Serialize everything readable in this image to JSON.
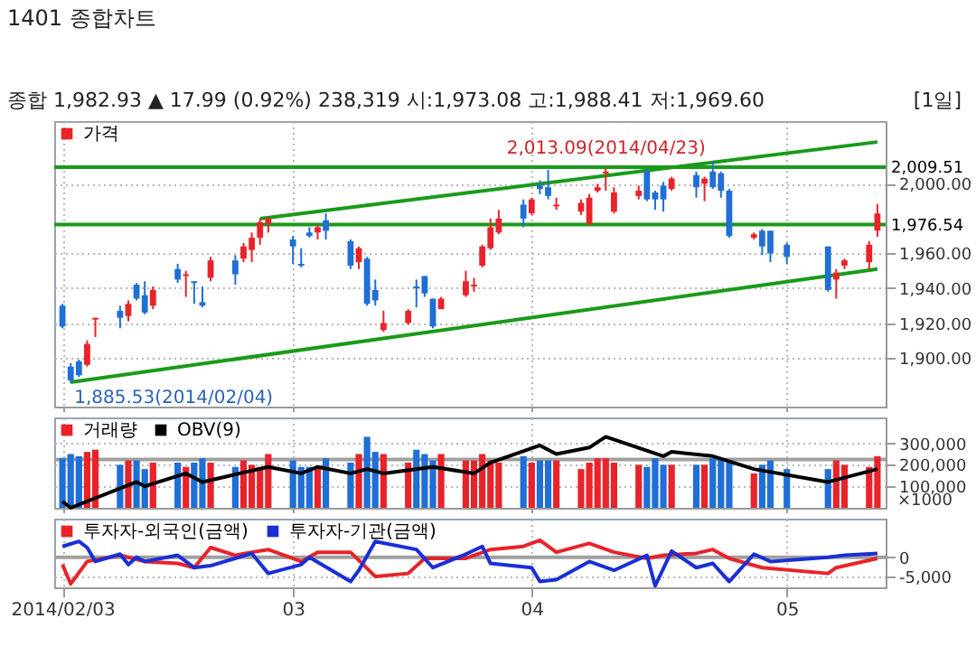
{
  "chart_data": [
    {
      "type": "candlestick",
      "title": "1401 종합차트",
      "subtitle": "종합 1,982.93 ▲ 17.99 (0.92%) 238,319 시:1,973.08 고:1,988.41 저:1,969.60",
      "annotations": [
        "[1일]",
        {
          "text": "2,013.09(2014/04/23)",
          "x": "2014-04-23",
          "y": 2013.09
        },
        {
          "text": "1,885.53(2014/02/04)",
          "x": "2014-02-04",
          "y": 1885.53
        }
      ],
      "series": [
        {
          "name": "가격",
          "x": [
            "2014-02-03",
            "2014-02-04",
            "2014-02-05",
            "2014-02-06",
            "2014-02-07",
            "2014-02-10",
            "2014-02-11",
            "2014-02-12",
            "2014-02-13",
            "2014-02-14",
            "2014-02-17",
            "2014-02-18",
            "2014-02-19",
            "2014-02-20",
            "2014-02-21",
            "2014-02-24",
            "2014-02-25",
            "2014-02-26",
            "2014-02-27",
            "2014-02-28",
            "2014-03-03",
            "2014-03-04",
            "2014-03-05",
            "2014-03-06",
            "2014-03-07",
            "2014-03-10",
            "2014-03-11",
            "2014-03-12",
            "2014-03-13",
            "2014-03-14",
            "2014-03-17",
            "2014-03-18",
            "2014-03-19",
            "2014-03-20",
            "2014-03-21",
            "2014-03-24",
            "2014-03-25",
            "2014-03-26",
            "2014-03-27",
            "2014-03-28",
            "2014-03-31",
            "2014-04-01",
            "2014-04-02",
            "2014-04-03",
            "2014-04-04",
            "2014-04-07",
            "2014-04-08",
            "2014-04-09",
            "2014-04-10",
            "2014-04-11",
            "2014-04-14",
            "2014-04-15",
            "2014-04-16",
            "2014-04-17",
            "2014-04-18",
            "2014-04-21",
            "2014-04-22",
            "2014-04-23",
            "2014-04-24",
            "2014-04-25",
            "2014-04-28",
            "2014-04-29",
            "2014-04-30",
            "2014-05-02",
            "2014-05-07",
            "2014-05-08",
            "2014-05-09",
            "2014-05-12",
            "2014-05-13"
          ],
          "ohlc": [
            [
              1930,
              1931,
              1917,
              1918
            ],
            [
              1895,
              1897,
              1885.53,
              1887
            ],
            [
              1898,
              1899,
              1889,
              1890
            ],
            [
              1896,
              1910,
              1895,
              1908
            ],
            [
              1922,
              1923,
              1912,
              1923
            ],
            [
              1927,
              1930,
              1917,
              1923
            ],
            [
              1924,
              1933,
              1921,
              1931
            ],
            [
              1942,
              1943,
              1933,
              1934
            ],
            [
              1936,
              1944,
              1925,
              1926
            ],
            [
              1930,
              1941,
              1928,
              1939
            ],
            [
              1951,
              1954,
              1943,
              1945
            ],
            [
              1947,
              1950,
              1935,
              1948
            ],
            [
              1944,
              1944,
              1931,
              1943
            ],
            [
              1932,
              1941,
              1929,
              1930
            ],
            [
              1946,
              1958,
              1944,
              1956
            ],
            [
              1956,
              1959,
              1942,
              1948
            ],
            [
              1957,
              1966,
              1955,
              1964
            ],
            [
              1962,
              1972,
              1955,
              1969
            ],
            [
              1969,
              1980,
              1965,
              1978
            ],
            [
              1977,
              1981,
              1972,
              1980
            ],
            [
              1968,
              1970,
              1954,
              1964
            ],
            [
              1954,
              1963,
              1952,
              1953
            ],
            [
              1972,
              1975,
              1969,
              1970
            ],
            [
              1972,
              1976,
              1968,
              1975
            ],
            [
              1979,
              1983,
              1968,
              1973
            ],
            [
              1967,
              1968,
              1951,
              1953
            ],
            [
              1955,
              1964,
              1951,
              1963
            ],
            [
              1957,
              1958,
              1930,
              1931
            ],
            [
              1939,
              1945,
              1930,
              1933
            ],
            [
              1916,
              1927,
              1915,
              1920
            ],
            [
              1920,
              1928,
              1919,
              1927
            ],
            [
              1941,
              1945,
              1929,
              1940
            ],
            [
              1947,
              1947,
              1935,
              1937
            ],
            [
              1934,
              1934,
              1917,
              1918
            ],
            [
              1928,
              1935,
              1928,
              1934
            ],
            [
              1936,
              1950,
              1935,
              1944
            ],
            [
              1941,
              1946,
              1938,
              1942
            ],
            [
              1953,
              1965,
              1952,
              1964
            ],
            [
              1963,
              1980,
              1962,
              1975
            ],
            [
              1972,
              1985,
              1971,
              1980
            ],
            [
              1988,
              1991,
              1975,
              1980
            ],
            [
              1983,
              1992,
              1982,
              1991
            ],
            [
              1999,
              2002,
              1994,
              1997
            ],
            [
              1998,
              2008,
              1991,
              1993
            ],
            [
              1987,
              1992,
              1985,
              1988
            ],
            [
              1984,
              1991,
              1982,
              1989
            ],
            [
              1977,
              1994,
              1976,
              1992
            ],
            [
              1996,
              2000,
              1995,
              1998
            ],
            [
              2006,
              2009,
              1996,
              2007
            ],
            [
              1984,
              1998,
              1983,
              1995
            ],
            [
              1993,
              1999,
              1991,
              1996
            ],
            [
              2007,
              2009,
              1990,
              1991
            ],
            [
              1995,
              1996,
              1985,
              1991
            ],
            [
              1999,
              2001,
              1984,
              1991
            ],
            [
              1997,
              2004,
              1996,
              2003
            ],
            [
              2005,
              2007,
              1992,
              1998
            ],
            [
              2000,
              2004,
              1990,
              2003
            ],
            [
              2007,
              2013.09,
              1997,
              1998
            ],
            [
              2006,
              2007,
              1992,
              1996
            ],
            [
              1996,
              1997,
              1969,
              1970
            ],
            [
              1969,
              1972,
              1968,
              1971
            ],
            [
              1973,
              1974,
              1959,
              1964
            ],
            [
              1973,
              1973,
              1955,
              1960
            ],
            [
              1965,
              1966,
              1954,
              1958
            ],
            [
              1964,
              1964,
              1938,
              1939
            ],
            [
              1945,
              1951,
              1934,
              1949
            ],
            [
              1953,
              1957,
              1951,
              1956
            ],
            [
              1955,
              1967,
              1951,
              1965
            ],
            [
              1973.08,
              1988.41,
              1969.6,
              1982.93
            ]
          ],
          "colors": [
            "#1f6fd6",
            "#1f6fd6",
            "#1f6fd6",
            "#e8232a",
            "#e8232a",
            "#1f6fd6",
            "#e8232a",
            "#1f6fd6",
            "#1f6fd6",
            "#e8232a",
            "#1f6fd6",
            "#e8232a",
            "#1f6fd6",
            "#1f6fd6",
            "#e8232a",
            "#1f6fd6",
            "#e8232a",
            "#e8232a",
            "#e8232a",
            "#e8232a",
            "#1f6fd6",
            "#1f6fd6",
            "#1f6fd6",
            "#e8232a",
            "#1f6fd6",
            "#1f6fd6",
            "#e8232a",
            "#1f6fd6",
            "#1f6fd6",
            "#e8232a",
            "#e8232a",
            "#1f6fd6",
            "#1f6fd6",
            "#1f6fd6",
            "#e8232a",
            "#e8232a",
            "#e8232a",
            "#e8232a",
            "#e8232a",
            "#e8232a",
            "#1f6fd6",
            "#e8232a",
            "#1f6fd6",
            "#1f6fd6",
            "#e8232a",
            "#e8232a",
            "#e8232a",
            "#e8232a",
            "#e8232a",
            "#e8232a",
            "#e8232a",
            "#1f6fd6",
            "#1f6fd6",
            "#1f6fd6",
            "#e8232a",
            "#1f6fd6",
            "#e8232a",
            "#1f6fd6",
            "#1f6fd6",
            "#1f6fd6",
            "#e8232a",
            "#1f6fd6",
            "#1f6fd6",
            "#1f6fd6",
            "#1f6fd6",
            "#e8232a",
            "#e8232a",
            "#e8232a",
            "#e8232a"
          ]
        },
        {
          "type": "line",
          "color": "#1a9a1a",
          "x": [
            "2014-02-27",
            "2014-05-13"
          ],
          "values": [
            1980,
            2024
          ]
        },
        {
          "type": "line",
          "color": "#1a9a1a",
          "x": [
            "2014-02-04",
            "2014-05-13"
          ],
          "values": [
            1886,
            1951
          ]
        }
      ],
      "ref_lines": [
        {
          "axis": "y",
          "value": 2009.51,
          "label": "2,009.51",
          "color": "#1a9a1a"
        },
        {
          "axis": "y",
          "value": 1976.54,
          "label": "1,976.54",
          "color": "#1a9a1a"
        }
      ],
      "ylim": [
        1872,
        2036
      ],
      "yticks": [
        {
          "value": 1900,
          "label": "1,900.00"
        },
        {
          "value": 1920,
          "label": "1,920.00"
        },
        {
          "value": 1940,
          "label": "1,940.00"
        },
        {
          "value": 1960,
          "label": "1,960.00"
        },
        {
          "value": 2000,
          "label": "2,000.00"
        }
      ],
      "xlim": [
        "2014-02-02",
        "2014-05-14"
      ],
      "xticks": [
        "2014-02-03",
        "2014-03-03",
        "2014-04-01",
        "2014-05-02"
      ],
      "tick_labels": "y",
      "grid": true,
      "legend": "top left"
    },
    {
      "type": "bar",
      "ylabel": "×1000",
      "series": [
        {
          "name": "거래량",
          "x": [
            "2014-02-03",
            "2014-02-04",
            "2014-02-05",
            "2014-02-06",
            "2014-02-07",
            "2014-02-10",
            "2014-02-11",
            "2014-02-12",
            "2014-02-13",
            "2014-02-14",
            "2014-02-17",
            "2014-02-18",
            "2014-02-19",
            "2014-02-20",
            "2014-02-21",
            "2014-02-24",
            "2014-02-25",
            "2014-02-26",
            "2014-02-27",
            "2014-02-28",
            "2014-03-03",
            "2014-03-04",
            "2014-03-05",
            "2014-03-06",
            "2014-03-07",
            "2014-03-10",
            "2014-03-11",
            "2014-03-12",
            "2014-03-13",
            "2014-03-14",
            "2014-03-17",
            "2014-03-18",
            "2014-03-19",
            "2014-03-20",
            "2014-03-21",
            "2014-03-24",
            "2014-03-25",
            "2014-03-26",
            "2014-03-27",
            "2014-03-28",
            "2014-03-31",
            "2014-04-01",
            "2014-04-02",
            "2014-04-03",
            "2014-04-04",
            "2014-04-07",
            "2014-04-08",
            "2014-04-09",
            "2014-04-10",
            "2014-04-11",
            "2014-04-14",
            "2014-04-15",
            "2014-04-16",
            "2014-04-17",
            "2014-04-18",
            "2014-04-21",
            "2014-04-22",
            "2014-04-23",
            "2014-04-24",
            "2014-04-25",
            "2014-04-28",
            "2014-04-29",
            "2014-04-30",
            "2014-05-02",
            "2014-05-07",
            "2014-05-08",
            "2014-05-09",
            "2014-05-12",
            "2014-05-13"
          ],
          "values": [
            230000,
            250000,
            240000,
            260000,
            270000,
            200000,
            220000,
            220000,
            180000,
            210000,
            210000,
            190000,
            210000,
            230000,
            210000,
            190000,
            220000,
            200000,
            190000,
            250000,
            220000,
            190000,
            190000,
            190000,
            230000,
            210000,
            250000,
            330000,
            260000,
            250000,
            210000,
            270000,
            250000,
            220000,
            250000,
            220000,
            220000,
            250000,
            220000,
            210000,
            240000,
            210000,
            220000,
            220000,
            220000,
            180000,
            210000,
            230000,
            230000,
            210000,
            200000,
            190000,
            230000,
            200000,
            200000,
            200000,
            200000,
            230000,
            230000,
            220000,
            160000,
            200000,
            220000,
            180000,
            180000,
            220000,
            200000,
            190000,
            240000
          ],
          "colors": [
            "#1f6fd6",
            "#1f6fd6",
            "#1f6fd6",
            "#e8232a",
            "#e8232a",
            "#1f6fd6",
            "#e8232a",
            "#1f6fd6",
            "#1f6fd6",
            "#e8232a",
            "#1f6fd6",
            "#e8232a",
            "#1f6fd6",
            "#1f6fd6",
            "#e8232a",
            "#1f6fd6",
            "#e8232a",
            "#e8232a",
            "#e8232a",
            "#e8232a",
            "#1f6fd6",
            "#1f6fd6",
            "#1f6fd6",
            "#e8232a",
            "#1f6fd6",
            "#1f6fd6",
            "#e8232a",
            "#1f6fd6",
            "#1f6fd6",
            "#e8232a",
            "#e8232a",
            "#1f6fd6",
            "#1f6fd6",
            "#1f6fd6",
            "#e8232a",
            "#e8232a",
            "#e8232a",
            "#e8232a",
            "#e8232a",
            "#e8232a",
            "#1f6fd6",
            "#e8232a",
            "#1f6fd6",
            "#1f6fd6",
            "#e8232a",
            "#e8232a",
            "#e8232a",
            "#e8232a",
            "#e8232a",
            "#e8232a",
            "#e8232a",
            "#1f6fd6",
            "#1f6fd6",
            "#1f6fd6",
            "#e8232a",
            "#1f6fd6",
            "#e8232a",
            "#1f6fd6",
            "#1f6fd6",
            "#1f6fd6",
            "#e8232a",
            "#1f6fd6",
            "#1f6fd6",
            "#1f6fd6",
            "#1f6fd6",
            "#e8232a",
            "#e8232a",
            "#e8232a",
            "#e8232a"
          ]
        },
        {
          "name": "OBV(9)",
          "type": "line",
          "color": "#000000",
          "x": [
            "2014-02-03",
            "2014-02-04",
            "2014-02-12",
            "2014-02-13",
            "2014-02-18",
            "2014-02-20",
            "2014-02-28",
            "2014-03-04",
            "2014-03-06",
            "2014-03-10",
            "2014-03-12",
            "2014-03-14",
            "2014-03-20",
            "2014-03-25",
            "2014-03-27",
            "2014-04-02",
            "2014-04-04",
            "2014-04-08",
            "2014-04-10",
            "2014-04-17",
            "2014-04-18",
            "2014-04-23",
            "2014-04-28",
            "2014-05-07",
            "2014-05-13"
          ],
          "values": [
            30000,
            0,
            120000,
            100000,
            160000,
            120000,
            190000,
            160000,
            190000,
            160000,
            180000,
            160000,
            190000,
            160000,
            210000,
            290000,
            250000,
            280000,
            330000,
            240000,
            260000,
            240000,
            180000,
            120000,
            180000
          ]
        }
      ],
      "ref_lines": [
        {
          "axis": "y",
          "value": 225000,
          "color": "#a0a0a0"
        }
      ],
      "ylim": [
        0,
        420000
      ],
      "yticks": [
        {
          "value": 100000,
          "label": "100,000"
        },
        {
          "value": 200000,
          "label": "200,000"
        },
        {
          "value": 300000,
          "label": "300,000"
        }
      ],
      "xlim": [
        "2014-02-02",
        "2014-05-14"
      ],
      "xticks": [
        "2014-02-03",
        "2014-03-03",
        "2014-04-01",
        "2014-05-02"
      ],
      "tick_labels": "y",
      "grid": true,
      "legend": "top left"
    },
    {
      "type": "line",
      "series": [
        {
          "name": "투자자-외국인(금액)",
          "color": "#e8232a",
          "x": [
            "2014-02-03",
            "2014-02-04",
            "2014-02-06",
            "2014-02-10",
            "2014-02-13",
            "2014-02-17",
            "2014-02-19",
            "2014-02-21",
            "2014-02-24",
            "2014-02-26",
            "2014-02-28",
            "2014-03-04",
            "2014-03-06",
            "2014-03-10",
            "2014-03-13",
            "2014-03-17",
            "2014-03-19",
            "2014-03-24",
            "2014-03-27",
            "2014-03-31",
            "2014-04-02",
            "2014-04-04",
            "2014-04-08",
            "2014-04-11",
            "2014-04-15",
            "2014-04-17",
            "2014-04-21",
            "2014-04-23",
            "2014-04-25",
            "2014-04-29",
            "2014-05-07",
            "2014-05-08",
            "2014-05-13"
          ],
          "values": [
            -1900,
            -6900,
            -1100,
            500,
            -1100,
            -1600,
            -2700,
            2500,
            500,
            1300,
            2000,
            -1100,
            1300,
            1300,
            -5000,
            -4200,
            -300,
            -300,
            2000,
            2800,
            4400,
            1300,
            3600,
            1300,
            -300,
            500,
            1000,
            2000,
            -300,
            -2700,
            -4200,
            -2700,
            -300
          ]
        },
        {
          "name": "투자자-기관(금액)",
          "color": "#1a2fd6",
          "x": [
            "2014-02-03",
            "2014-02-05",
            "2014-02-06",
            "2014-02-07",
            "2014-02-10",
            "2014-02-11",
            "2014-02-12",
            "2014-02-13",
            "2014-02-17",
            "2014-02-19",
            "2014-02-21",
            "2014-02-26",
            "2014-02-28",
            "2014-03-04",
            "2014-03-05",
            "2014-03-10",
            "2014-03-11",
            "2014-03-13",
            "2014-03-18",
            "2014-03-20",
            "2014-03-24",
            "2014-03-26",
            "2014-03-27",
            "2014-04-01",
            "2014-04-02",
            "2014-04-04",
            "2014-04-08",
            "2014-04-11",
            "2014-04-15",
            "2014-04-16",
            "2014-04-18",
            "2014-04-21",
            "2014-04-23",
            "2014-04-25",
            "2014-04-28",
            "2014-04-30",
            "2014-05-07",
            "2014-05-09",
            "2014-05-13"
          ],
          "values": [
            2800,
            4100,
            2500,
            -1100,
            800,
            -1900,
            0,
            -1100,
            500,
            -2700,
            -2200,
            1000,
            -4200,
            -1900,
            0,
            -6300,
            -3400,
            4100,
            2000,
            -2700,
            800,
            2800,
            -1600,
            -2700,
            -6300,
            -5800,
            -1100,
            -3400,
            500,
            -7400,
            1600,
            -2700,
            -1600,
            -6300,
            800,
            -1100,
            0,
            500,
            1000
          ]
        }
      ],
      "ref_lines": [
        {
          "axis": "y",
          "value": 0,
          "color": "#a0a0a0"
        }
      ],
      "ylim": [
        -7800,
        10000
      ],
      "yticks": [
        {
          "value": -5000,
          "label": "-5,000"
        },
        0
      ],
      "xlim": [
        "2014-02-02",
        "2014-05-14"
      ],
      "xticks": [
        {
          "value": "2014-02-03",
          "label": "2014/02/03"
        },
        {
          "value": "2014-03-03",
          "label": "03"
        },
        {
          "value": "2014-04-01",
          "label": "04"
        },
        {
          "value": "2014-05-02",
          "label": "05"
        }
      ],
      "grid": true,
      "legend": "top left"
    }
  ]
}
